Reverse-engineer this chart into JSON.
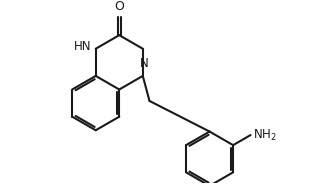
{
  "bg_color": "#ffffff",
  "bond_color": "#1a1a1a",
  "text_color": "#1a1a1a",
  "line_width": 1.5,
  "font_size": 8.5,
  "figsize": [
    3.26,
    1.84
  ],
  "dpi": 100,
  "xlim": [
    -1,
    9
  ],
  "ylim": [
    -1,
    5.5
  ]
}
